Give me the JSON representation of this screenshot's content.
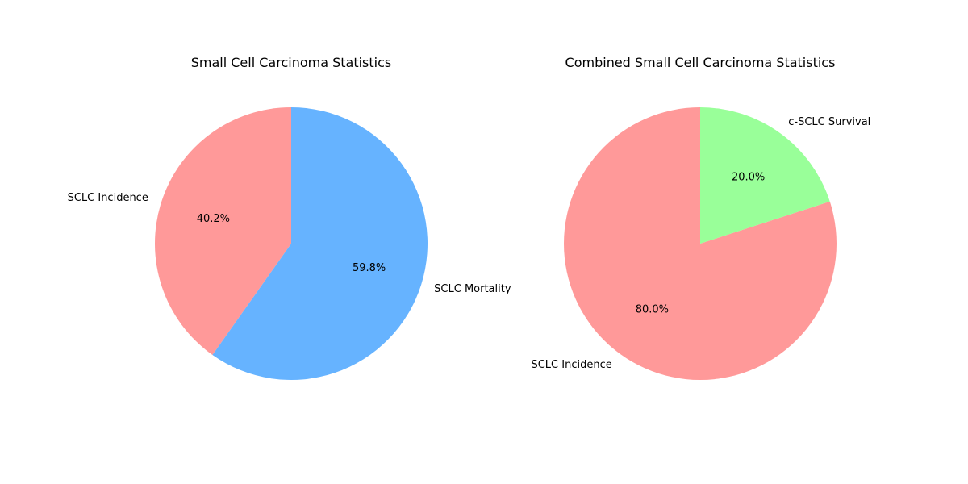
{
  "chart_data": [
    {
      "type": "pie",
      "title": "Small Cell Carcinoma Statistics",
      "labels": [
        "SCLC Incidence",
        "SCLC Mortality"
      ],
      "values": [
        40.2,
        59.8
      ],
      "percent_labels": [
        "40.2%",
        "59.8%"
      ],
      "colors": [
        "#ff9999",
        "#66b3ff"
      ],
      "start_angle": 90,
      "direction": "counterclockwise"
    },
    {
      "type": "pie",
      "title": "Combined Small Cell Carcinoma Statistics",
      "labels": [
        "SCLC Incidence",
        "c-SCLC Survival"
      ],
      "values": [
        80.0,
        20.0
      ],
      "percent_labels": [
        "80.0%",
        "20.0%"
      ],
      "colors": [
        "#ff9999",
        "#99ff99"
      ],
      "start_angle": 90,
      "direction": "counterclockwise"
    }
  ]
}
